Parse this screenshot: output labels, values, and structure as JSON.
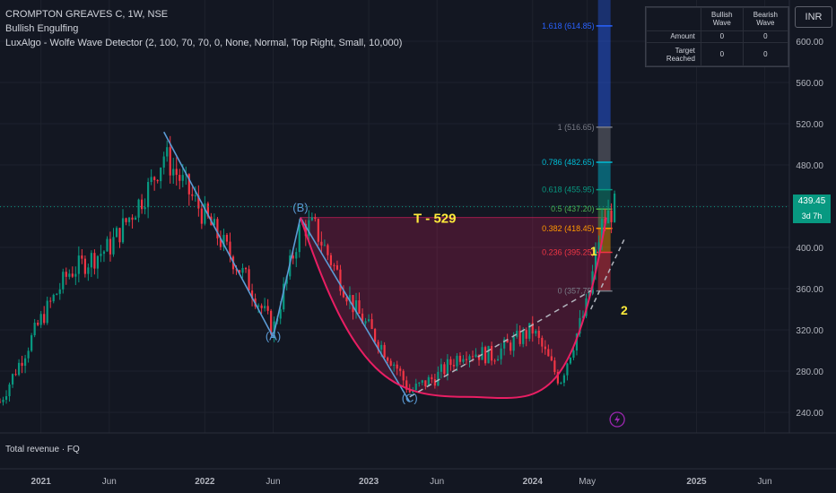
{
  "header": {
    "symbol_line": "CROMPTON GREAVES C, 1W, NSE",
    "indicator1": "Bullish Engulfing",
    "indicator2": "LuxAlgo - Wolfe Wave Detector (2, 100, 70, 70, 0, None, Normal, Top Right, Small, 10,000)"
  },
  "stats_table": {
    "col1": "Bullish Wave",
    "col2": "Bearish Wave",
    "row1_label": "Amount",
    "row1_v1": "0",
    "row1_v2": "0",
    "row2_label": "Target Reached",
    "row2_v1": "0",
    "row2_v2": "0"
  },
  "currency": "INR",
  "price_tag": {
    "price": "439.45",
    "countdown": "3d 7h"
  },
  "bottom_pane_label": "Total revenue · FQ",
  "lightning_icon": "lightning-icon",
  "colors": {
    "background": "#131722",
    "up": "#089981",
    "down": "#f23645",
    "wave_line": "#5b9bd5",
    "arc": "#e91e63",
    "target_text": "#ffeb3b"
  },
  "chart_data": {
    "type": "candlestick",
    "y_axis": {
      "min": 220,
      "max": 640,
      "ticks": [
        "240.00",
        "280.00",
        "320.00",
        "360.00",
        "400.00",
        "440.00",
        "480.00",
        "520.00",
        "560.00",
        "600.00"
      ]
    },
    "x_axis": {
      "labels": [
        "2021",
        "Jun",
        "2022",
        "Jun",
        "2023",
        "Jun",
        "2024",
        "May",
        "2025",
        "Jun"
      ]
    },
    "price_path": [
      {
        "t": "2020-10",
        "p": 250
      },
      {
        "t": "2021-01",
        "p": 330
      },
      {
        "t": "2021-03",
        "p": 375
      },
      {
        "t": "2021-06",
        "p": 400
      },
      {
        "t": "2021-09",
        "p": 460
      },
      {
        "t": "2021-10",
        "p": 490
      },
      {
        "t": "2022-01",
        "p": 430
      },
      {
        "t": "2022-04",
        "p": 370
      },
      {
        "t": "2022-06",
        "p": 320
      },
      {
        "t": "2022-08",
        "p": 420
      },
      {
        "t": "2022-09",
        "p": 420
      },
      {
        "t": "2022-12",
        "p": 340
      },
      {
        "t": "2023-03",
        "p": 285
      },
      {
        "t": "2023-04",
        "p": 260
      },
      {
        "t": "2023-06",
        "p": 275
      },
      {
        "t": "2023-08",
        "p": 300
      },
      {
        "t": "2023-10",
        "p": 295
      },
      {
        "t": "2024-01",
        "p": 320
      },
      {
        "t": "2024-03",
        "p": 270
      },
      {
        "t": "2024-05",
        "p": 345
      },
      {
        "t": "2024-06",
        "p": 420
      },
      {
        "t": "2024-07",
        "p": 439.45
      }
    ],
    "wave_labels": [
      {
        "label": "(A)",
        "t": "2022-06",
        "p": 310
      },
      {
        "label": "(B)",
        "t": "2022-08",
        "p": 435
      },
      {
        "label": "(C)",
        "t": "2023-04",
        "p": 250
      },
      {
        "label": "1",
        "t": "2024-06",
        "p": 392
      },
      {
        "label": "2",
        "t": "2024-06",
        "p": 335
      }
    ],
    "wave_lines": [
      {
        "from": {
          "t": "2021-10",
          "p": 512
        },
        "to": {
          "t": "2022-06",
          "p": 313
        }
      },
      {
        "from": {
          "t": "2022-06",
          "p": 313
        },
        "to": {
          "t": "2022-08",
          "p": 429
        }
      },
      {
        "from": {
          "t": "2022-08",
          "p": 429
        },
        "to": {
          "t": "2023-04",
          "p": 250
        }
      }
    ],
    "target_label": "T - 529",
    "fib_levels": [
      {
        "ratio": "1.618",
        "value": 614.85,
        "label": "1.618 (614.85)",
        "color": "#2962ff"
      },
      {
        "ratio": "1",
        "value": 516.65,
        "label": "1 (516.65)",
        "color": "#787b86"
      },
      {
        "ratio": "0.786",
        "value": 482.65,
        "label": "0.786 (482.65)",
        "color": "#00bcd4"
      },
      {
        "ratio": "0.618",
        "value": 455.95,
        "label": "0.618 (455.95)",
        "color": "#089981"
      },
      {
        "ratio": "0.5",
        "value": 437.2,
        "label": "0.5 (437.20)",
        "color": "#4caf50"
      },
      {
        "ratio": "0.382",
        "value": 418.45,
        "label": "0.382 (418.45)",
        "color": "#ff9800"
      },
      {
        "ratio": "0.236",
        "value": 395.25,
        "label": "0.236 (395.25)",
        "color": "#f23645"
      },
      {
        "ratio": "0",
        "value": 357.75,
        "label": "0 (357.75)",
        "color": "#787b86"
      }
    ]
  }
}
